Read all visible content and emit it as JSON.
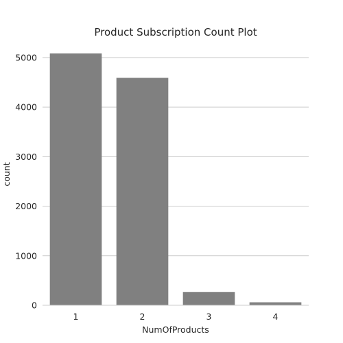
{
  "chart_data": {
    "type": "bar",
    "title": "Product Subscription Count Plot",
    "xlabel": "NumOfProducts",
    "ylabel": "count",
    "categories": [
      "1",
      "2",
      "3",
      "4"
    ],
    "values": [
      5084,
      4590,
      266,
      60
    ],
    "ylim": [
      0,
      5400
    ],
    "yticks": [
      0,
      1000,
      2000,
      3000,
      4000,
      5000
    ],
    "bar_color": "#808080",
    "grid": "horizontal"
  }
}
